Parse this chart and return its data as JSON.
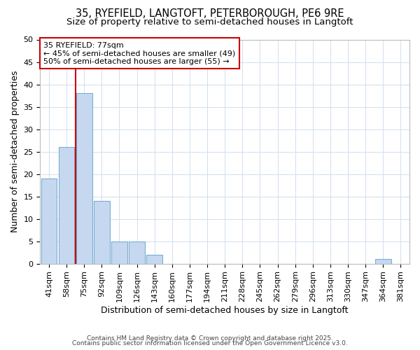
{
  "title_line1": "35, RYEFIELD, LANGTOFT, PETERBOROUGH, PE6 9RE",
  "title_line2": "Size of property relative to semi-detached houses in Langtoft",
  "xlabel": "Distribution of semi-detached houses by size in Langtoft",
  "ylabel": "Number of semi-detached properties",
  "categories": [
    "41sqm",
    "58sqm",
    "75sqm",
    "92sqm",
    "109sqm",
    "126sqm",
    "143sqm",
    "160sqm",
    "177sqm",
    "194sqm",
    "211sqm",
    "228sqm",
    "245sqm",
    "262sqm",
    "279sqm",
    "296sqm",
    "313sqm",
    "330sqm",
    "347sqm",
    "364sqm",
    "381sqm"
  ],
  "values": [
    19,
    26,
    38,
    14,
    5,
    5,
    2,
    0,
    0,
    0,
    0,
    0,
    0,
    0,
    0,
    0,
    0,
    0,
    0,
    1,
    0
  ],
  "bar_color": "#c5d8f0",
  "bar_edge_color": "#7aadd4",
  "bar_edge_width": 0.8,
  "red_line_x": 1.5,
  "red_line_color": "#cc0000",
  "annotation_text_line1": "35 RYEFIELD: 77sqm",
  "annotation_text_line2": "← 45% of semi-detached houses are smaller (49)",
  "annotation_text_line3": "50% of semi-detached houses are larger (55) →",
  "annotation_box_color": "#ffffff",
  "annotation_box_edge_color": "#cc0000",
  "ylim": [
    0,
    50
  ],
  "yticks": [
    0,
    5,
    10,
    15,
    20,
    25,
    30,
    35,
    40,
    45,
    50
  ],
  "grid_color": "#d0dff0",
  "bg_color": "#ffffff",
  "plot_bg_color": "#ffffff",
  "footer_line1": "Contains HM Land Registry data © Crown copyright and database right 2025.",
  "footer_line2": "Contains public sector information licensed under the Open Government Licence v3.0.",
  "title_fontsize": 10.5,
  "subtitle_fontsize": 9.5,
  "axis_label_fontsize": 9,
  "tick_fontsize": 8,
  "annotation_fontsize": 8,
  "footer_fontsize": 6.5
}
